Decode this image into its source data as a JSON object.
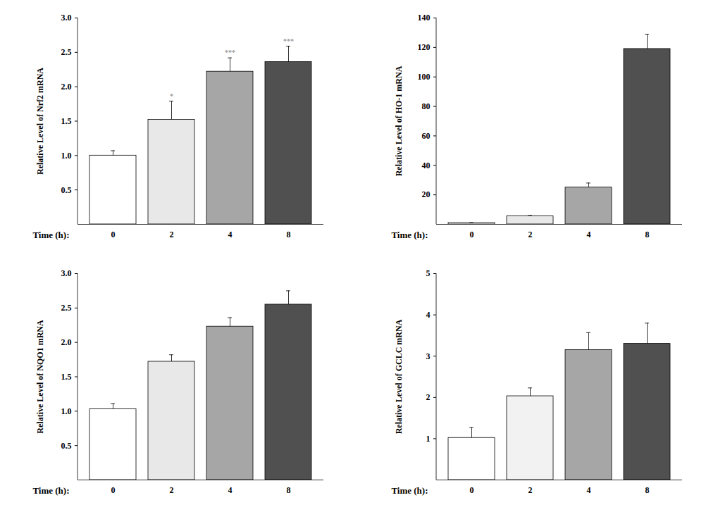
{
  "chart_data": [
    {
      "type": "bar",
      "y_label": "Relative Level of Nrf2 mRNA",
      "x_label": "Time (h):",
      "categories": [
        "0",
        "2",
        "4",
        "8"
      ],
      "values": [
        1.0,
        1.52,
        2.22,
        2.36
      ],
      "errors": [
        0.07,
        0.27,
        0.2,
        0.23
      ],
      "annotations": [
        null,
        "*",
        "***",
        "***"
      ],
      "colors": [
        "#ffffff",
        "#e8e8e8",
        "#a6a6a6",
        "#505050"
      ],
      "ylim": [
        0,
        3
      ],
      "yticks": [
        0.5,
        {
          "value": 1,
          "label": "1.0"
        },
        1.5,
        {
          "value": 2,
          "label": "2.0"
        },
        2.5,
        {
          "value": 3,
          "label": "3.0"
        }
      ]
    },
    {
      "type": "bar",
      "y_label": "Relative Level of HO-1 mRNA",
      "x_label": "Time (h):",
      "categories": [
        "0",
        "2",
        "4",
        "8"
      ],
      "values": [
        1,
        5.5,
        25,
        119
      ],
      "errors": [
        0.3,
        0.5,
        3,
        10
      ],
      "colors": [
        "#ffffff",
        "#e8e8e8",
        "#a6a6a6",
        "#505050"
      ],
      "ylim": [
        0,
        140
      ],
      "yticks": [
        20,
        40,
        60,
        80,
        100,
        120,
        140
      ]
    },
    {
      "type": "bar",
      "y_label": "Relative Level of NQO1 mRNA",
      "x_label": "Time (h):",
      "categories": [
        "0",
        "2",
        "4",
        "8"
      ],
      "values": [
        1.03,
        1.72,
        2.23,
        2.55
      ],
      "errors": [
        0.08,
        0.1,
        0.13,
        0.2
      ],
      "colors": [
        "#ffffff",
        "#e8e8e8",
        "#a6a6a6",
        "#505050"
      ],
      "ylim": [
        0,
        3
      ],
      "yticks": [
        0.5,
        {
          "value": 1,
          "label": "1.0"
        },
        1.5,
        {
          "value": 2,
          "label": "2.0"
        },
        2.5,
        {
          "value": 3,
          "label": "3.0"
        }
      ]
    },
    {
      "type": "bar",
      "y_label": "Relative Level of GCLC mRNA",
      "x_label": "Time (h):",
      "categories": [
        "0",
        "2",
        "4",
        "8"
      ],
      "values": [
        1.02,
        2.03,
        3.15,
        3.3
      ],
      "errors": [
        0.25,
        0.2,
        0.42,
        0.5
      ],
      "colors": [
        "#ffffff",
        "#f2f2f2",
        "#a6a6a6",
        "#505050"
      ],
      "ylim": [
        0,
        5
      ],
      "yticks": [
        1,
        2,
        3,
        4,
        5
      ]
    }
  ]
}
